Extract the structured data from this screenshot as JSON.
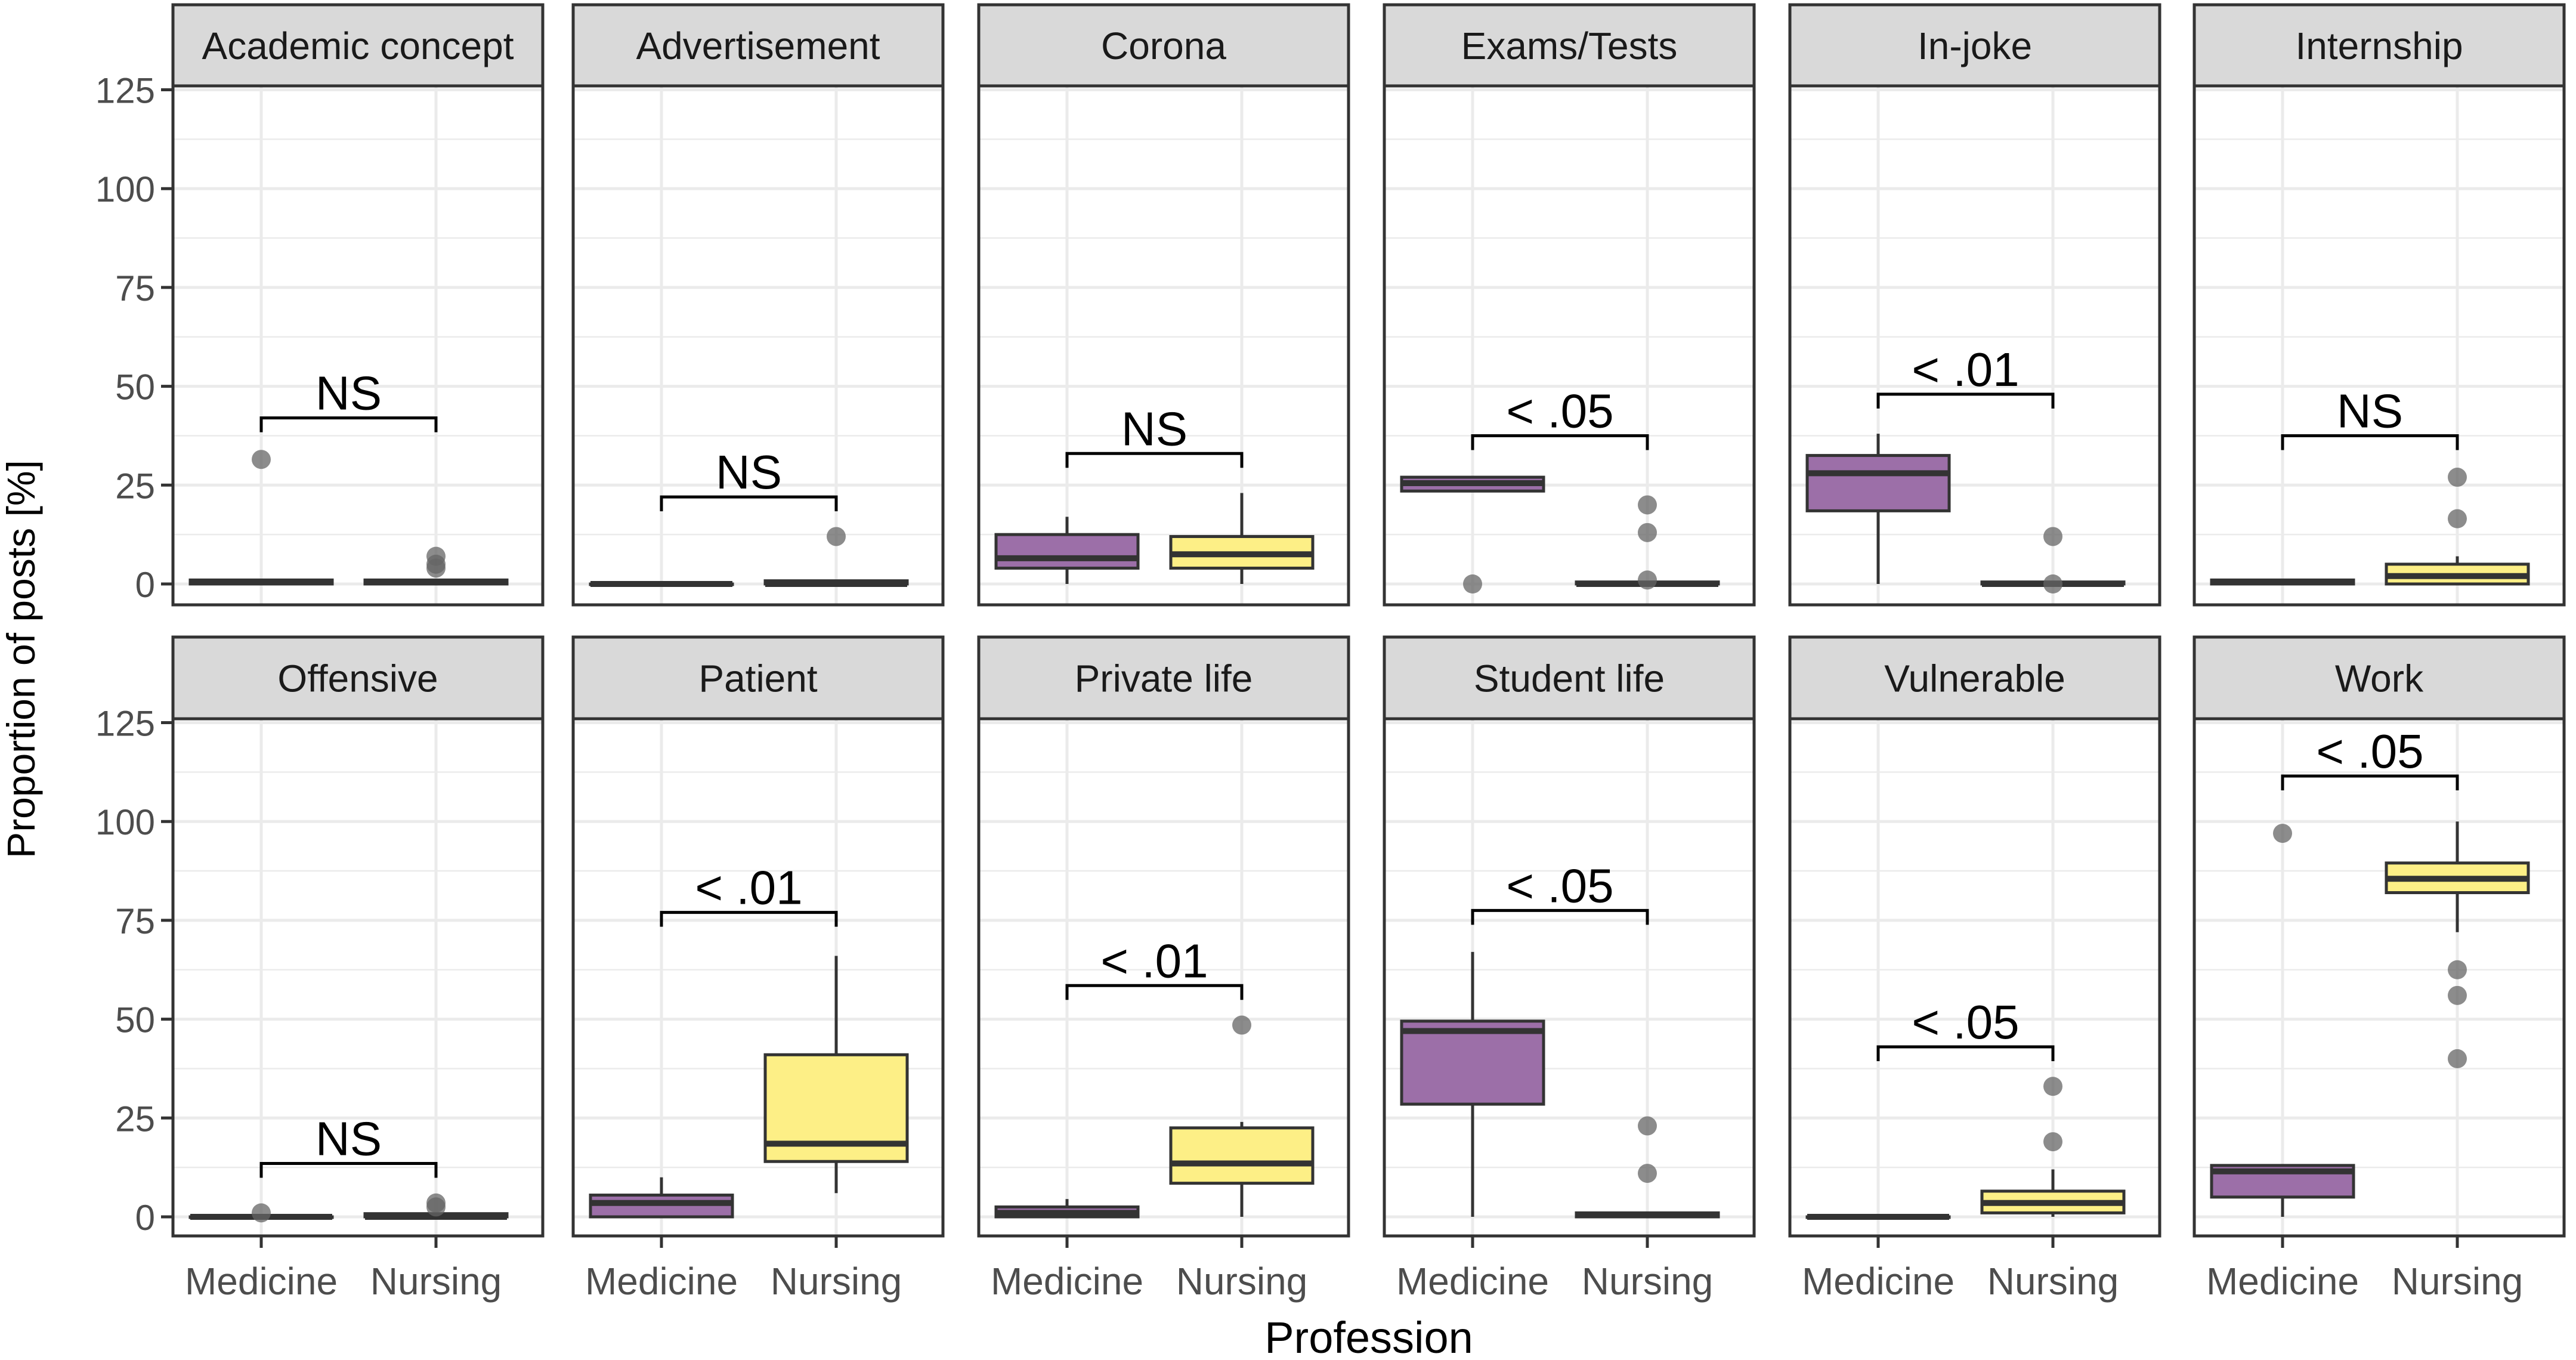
{
  "chart_data": {
    "type": "boxplot",
    "xlabel": "Profession",
    "ylabel": "Proportion of posts [%]",
    "ylim": [
      -5,
      132
    ],
    "yticks": [
      0,
      25,
      50,
      75,
      100,
      125
    ],
    "categories": [
      "Medicine",
      "Nursing"
    ],
    "colors": {
      "Medicine": "#9c6fa8",
      "Nursing": "#fdef86"
    },
    "layout": "2 rows x 6 facets",
    "panels": [
      {
        "title": "Academic concept",
        "sig": "NS",
        "bracket_y": 42,
        "boxes": [
          {
            "group": "Medicine",
            "q1": 0,
            "median": 0.5,
            "q3": 1,
            "whisker_low": 0,
            "whisker_high": 1,
            "outliers": [
              31.5
            ]
          },
          {
            "group": "Nursing",
            "q1": 0,
            "median": 0.5,
            "q3": 1,
            "whisker_low": 0,
            "whisker_high": 1,
            "outliers": [
              4,
              5,
              7
            ]
          }
        ]
      },
      {
        "title": "Advertisement",
        "sig": "NS",
        "bracket_y": 22,
        "boxes": [
          {
            "group": "Medicine",
            "q1": 0,
            "median": 0,
            "q3": 0,
            "whisker_low": 0,
            "whisker_high": 0,
            "outliers": []
          },
          {
            "group": "Nursing",
            "q1": 0,
            "median": 0,
            "q3": 0.8,
            "whisker_low": 0,
            "whisker_high": 0.8,
            "outliers": [
              12
            ]
          }
        ]
      },
      {
        "title": "Corona",
        "sig": "NS",
        "bracket_y": 33,
        "boxes": [
          {
            "group": "Medicine",
            "q1": 4,
            "median": 6.5,
            "q3": 12.5,
            "whisker_low": 0,
            "whisker_high": 17,
            "outliers": []
          },
          {
            "group": "Nursing",
            "q1": 4,
            "median": 7.5,
            "q3": 12,
            "whisker_low": 0,
            "whisker_high": 23,
            "outliers": []
          }
        ]
      },
      {
        "title": "Exams/Tests",
        "sig": "< .05",
        "bracket_y": 37.5,
        "boxes": [
          {
            "group": "Medicine",
            "q1": 23.5,
            "median": 25.5,
            "q3": 27,
            "whisker_low": 23.5,
            "whisker_high": 27,
            "outliers": [
              0
            ]
          },
          {
            "group": "Nursing",
            "q1": 0,
            "median": 0,
            "q3": 0.5,
            "whisker_low": 0,
            "whisker_high": 0.5,
            "outliers": [
              1,
              13,
              20
            ]
          }
        ]
      },
      {
        "title": "In-joke",
        "sig": "< .01",
        "bracket_y": 48,
        "boxes": [
          {
            "group": "Medicine",
            "q1": 18.5,
            "median": 28,
            "q3": 32.5,
            "whisker_low": 0,
            "whisker_high": 38,
            "outliers": []
          },
          {
            "group": "Nursing",
            "q1": 0,
            "median": 0,
            "q3": 0.5,
            "whisker_low": 0,
            "whisker_high": 0.5,
            "outliers": [
              0,
              12
            ]
          }
        ]
      },
      {
        "title": "Internship",
        "sig": "NS",
        "bracket_y": 37.5,
        "boxes": [
          {
            "group": "Medicine",
            "q1": 0,
            "median": 0.5,
            "q3": 1,
            "whisker_low": 0,
            "whisker_high": 1,
            "outliers": []
          },
          {
            "group": "Nursing",
            "q1": 0,
            "median": 2,
            "q3": 5,
            "whisker_low": 0,
            "whisker_high": 7,
            "outliers": [
              16.5,
              27
            ]
          }
        ]
      },
      {
        "title": "Offensive",
        "sig": "NS",
        "bracket_y": 13.5,
        "boxes": [
          {
            "group": "Medicine",
            "q1": 0,
            "median": 0,
            "q3": 0,
            "whisker_low": 0,
            "whisker_high": 0,
            "outliers": [
              1
            ]
          },
          {
            "group": "Nursing",
            "q1": 0,
            "median": 0,
            "q3": 0.8,
            "whisker_low": 0,
            "whisker_high": 0.8,
            "outliers": [
              2.5,
              3.5
            ]
          }
        ]
      },
      {
        "title": "Patient",
        "sig": "< .01",
        "bracket_y": 77,
        "boxes": [
          {
            "group": "Medicine",
            "q1": 0,
            "median": 3.5,
            "q3": 5.5,
            "whisker_low": 0,
            "whisker_high": 10,
            "outliers": []
          },
          {
            "group": "Nursing",
            "q1": 14,
            "median": 18.5,
            "q3": 41,
            "whisker_low": 6,
            "whisker_high": 66,
            "outliers": []
          }
        ]
      },
      {
        "title": "Private life",
        "sig": "< .01",
        "bracket_y": 58.5,
        "boxes": [
          {
            "group": "Medicine",
            "q1": 0,
            "median": 1,
            "q3": 2.5,
            "whisker_low": 0,
            "whisker_high": 4.5,
            "outliers": []
          },
          {
            "group": "Nursing",
            "q1": 8.5,
            "median": 13.5,
            "q3": 22.5,
            "whisker_low": 0,
            "whisker_high": 24,
            "outliers": [
              48.5
            ]
          }
        ]
      },
      {
        "title": "Student life",
        "sig": "< .05",
        "bracket_y": 77.5,
        "boxes": [
          {
            "group": "Medicine",
            "q1": 28.5,
            "median": 47,
            "q3": 49.5,
            "whisker_low": 0,
            "whisker_high": 67,
            "outliers": []
          },
          {
            "group": "Nursing",
            "q1": 0,
            "median": 0.5,
            "q3": 1,
            "whisker_low": 0,
            "whisker_high": 1,
            "outliers": [
              11,
              23
            ]
          }
        ]
      },
      {
        "title": "Vulnerable",
        "sig": "< .05",
        "bracket_y": 43,
        "boxes": [
          {
            "group": "Medicine",
            "q1": 0,
            "median": 0,
            "q3": 0,
            "whisker_low": 0,
            "whisker_high": 0,
            "outliers": []
          },
          {
            "group": "Nursing",
            "q1": 1,
            "median": 3.5,
            "q3": 6.5,
            "whisker_low": 0,
            "whisker_high": 12,
            "outliers": [
              19,
              33
            ]
          }
        ]
      },
      {
        "title": "Work",
        "sig": "< .05",
        "bracket_y": 111.5,
        "boxes": [
          {
            "group": "Medicine",
            "q1": 5,
            "median": 11.5,
            "q3": 13,
            "whisker_low": 0,
            "whisker_high": 13,
            "outliers": [
              97
            ]
          },
          {
            "group": "Nursing",
            "q1": 82,
            "median": 85.5,
            "q3": 89.5,
            "whisker_low": 72,
            "whisker_high": 100,
            "outliers": [
              40,
              56,
              62.5
            ]
          }
        ]
      }
    ]
  }
}
